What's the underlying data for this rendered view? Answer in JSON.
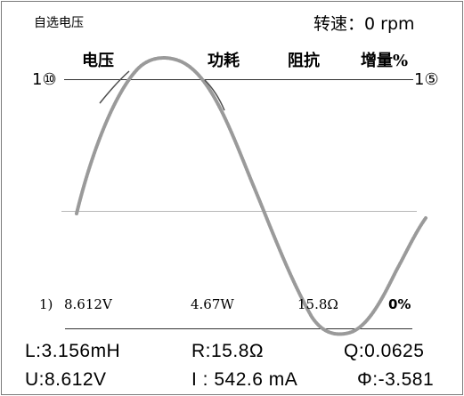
{
  "header": {
    "title": "自选电压",
    "speed_label": "转速：",
    "speed_value": "0",
    "speed_unit": "rpm",
    "columns": [
      "电压",
      "功耗",
      "阻抗",
      "增量%"
    ]
  },
  "scale": {
    "left": "1⑩",
    "right": "1⑤"
  },
  "readings": {
    "index": "1)",
    "voltage": "8.612V",
    "power": "4.67W",
    "impedance": "15.8Ω",
    "increment": "0%"
  },
  "bottom": {
    "L": "L:3.156mH",
    "R": "R:15.8Ω",
    "Q": "Q:0.0625",
    "U": "U:8.612V",
    "I": "I : 542.6 mA",
    "phi": "Φ:-3.581"
  },
  "colors": {
    "wave": "#9a9a9a",
    "text": "#000000",
    "grid": "#333333"
  }
}
